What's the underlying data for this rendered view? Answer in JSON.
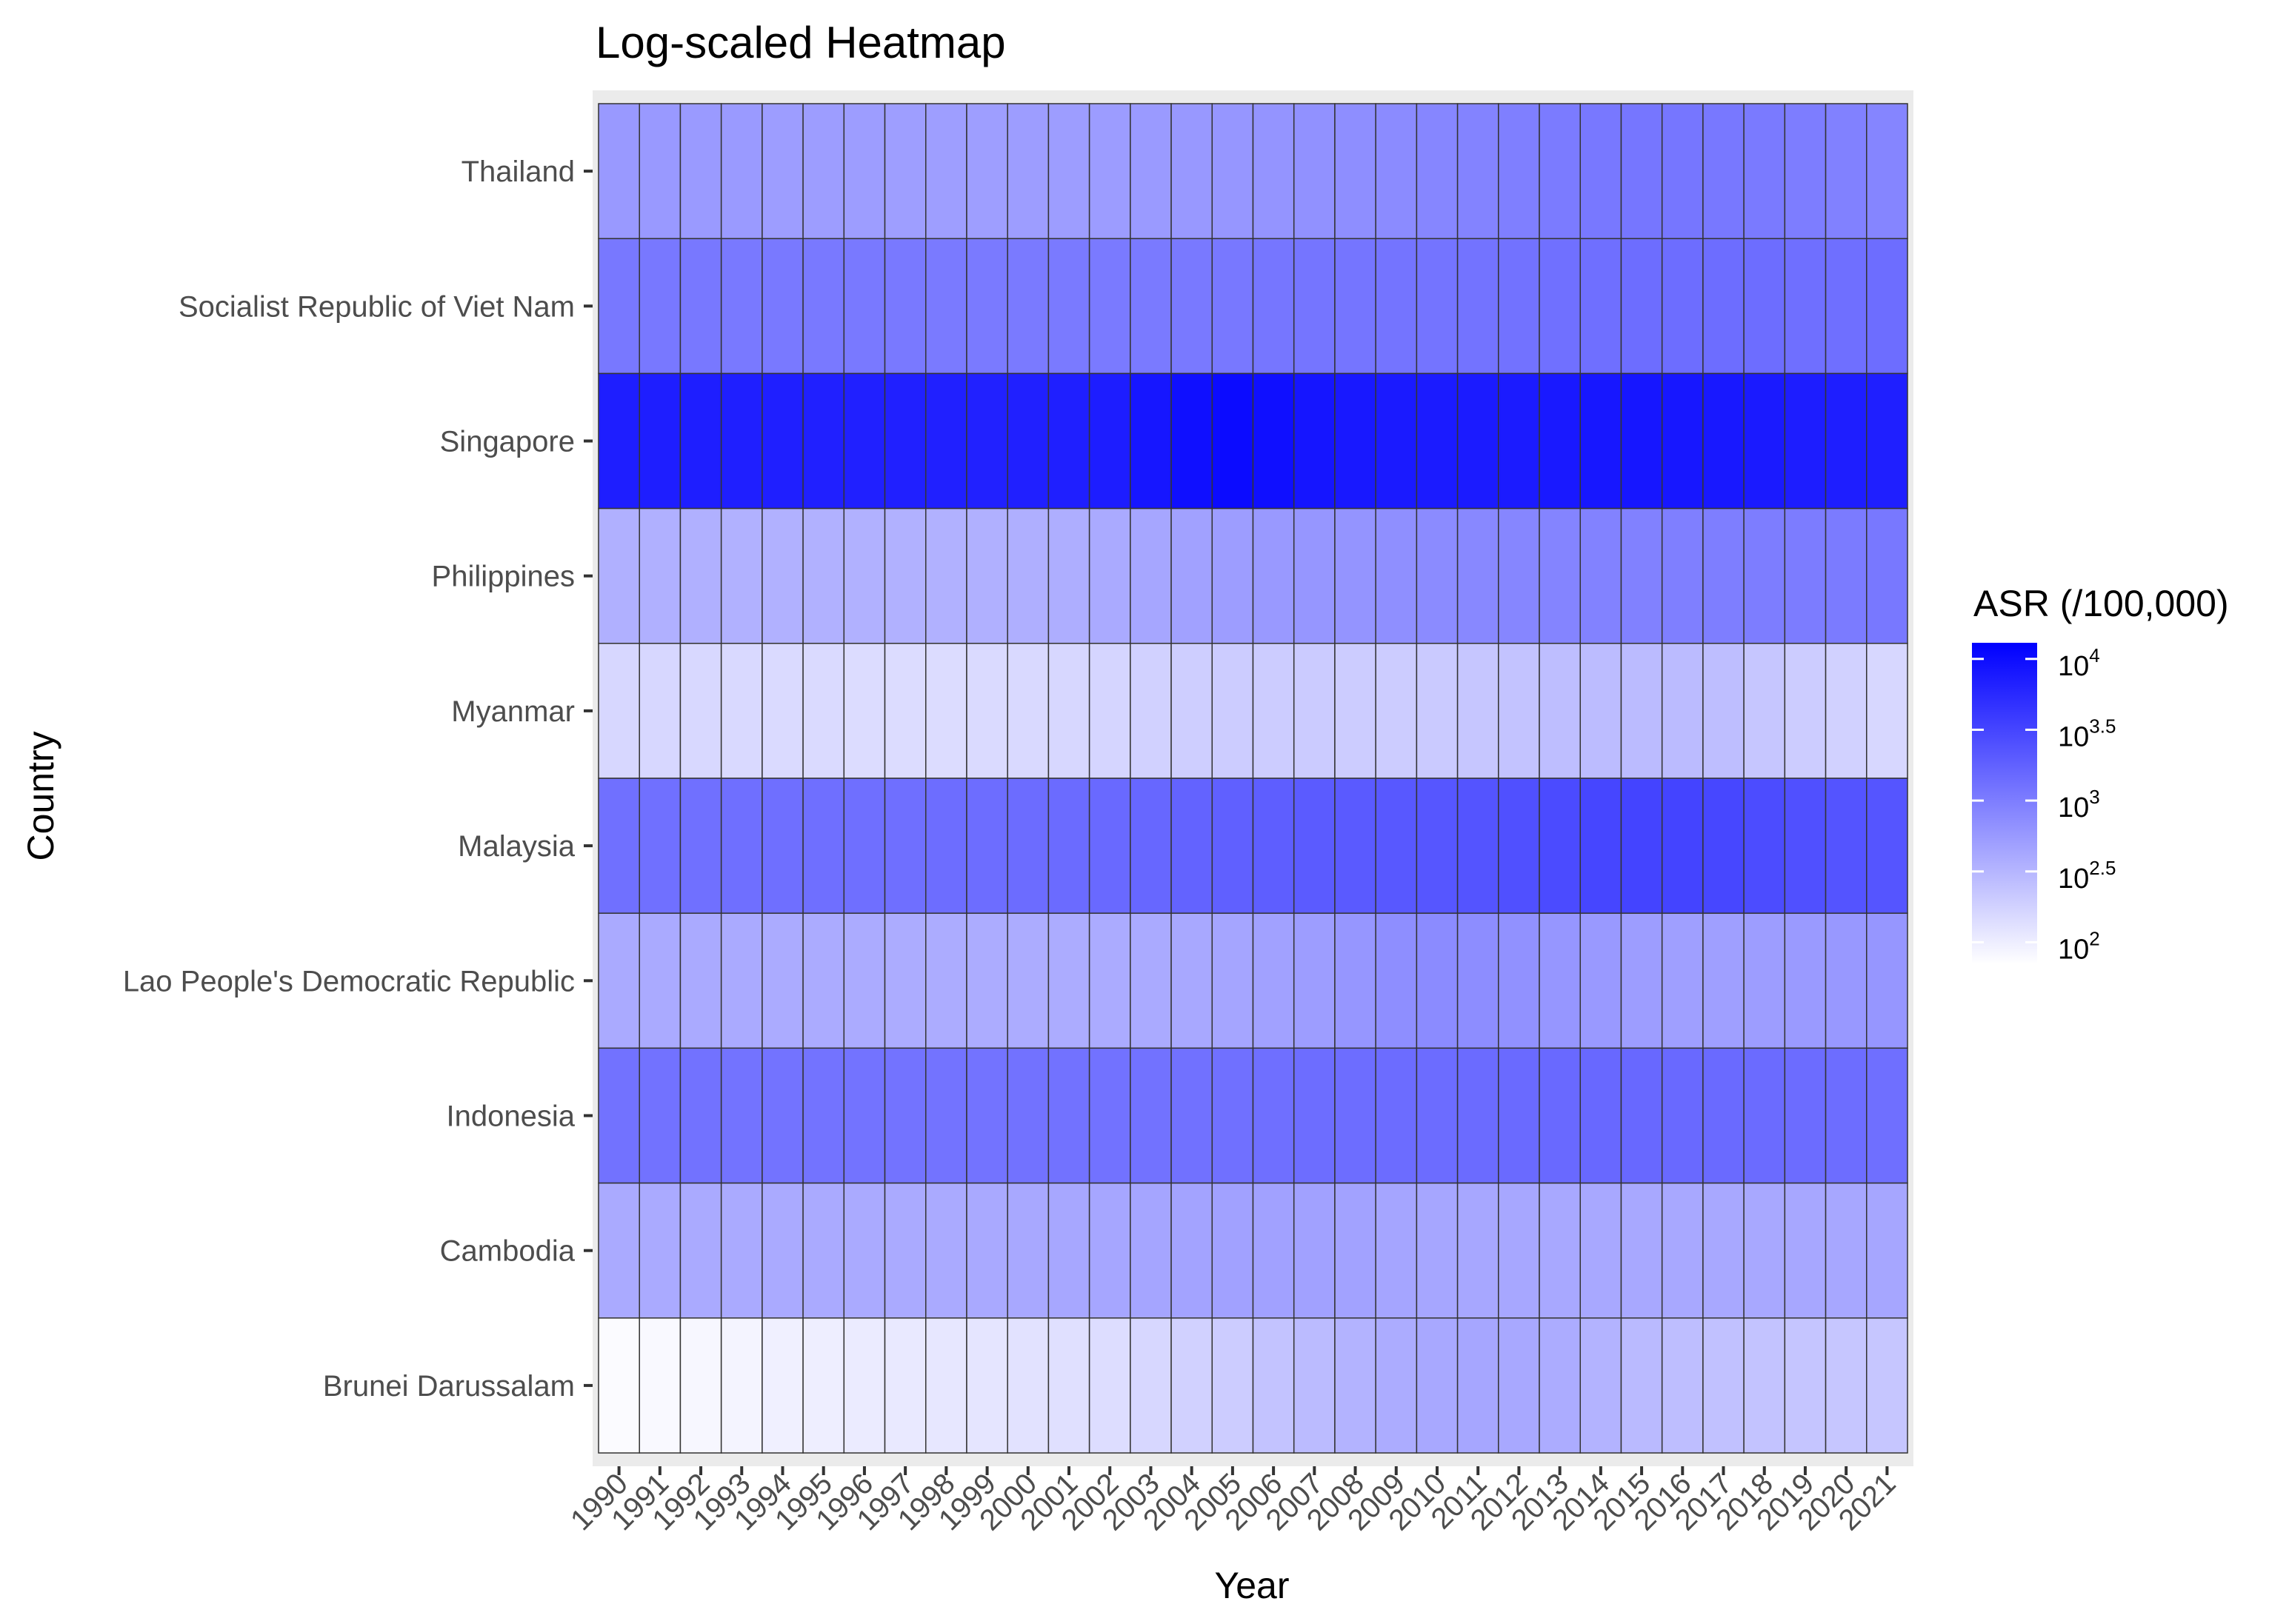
{
  "chart_data": {
    "type": "heatmap",
    "title": "Log-scaled Heatmap",
    "xlabel": "Year",
    "ylabel": "Country",
    "x": [
      "1990",
      "1991",
      "1992",
      "1993",
      "1994",
      "1995",
      "1996",
      "1997",
      "1998",
      "1999",
      "2000",
      "2001",
      "2002",
      "2003",
      "2004",
      "2005",
      "2006",
      "2007",
      "2008",
      "2009",
      "2010",
      "2011",
      "2012",
      "2013",
      "2014",
      "2015",
      "2016",
      "2017",
      "2018",
      "2019",
      "2020",
      "2021"
    ],
    "y": [
      "Thailand",
      "Socialist Republic of Viet Nam",
      "Singapore",
      "Philippines",
      "Myanmar",
      "Malaysia",
      "Lao People's Democratic Republic",
      "Indonesia",
      "Cambodia",
      "Brunei Darussalam"
    ],
    "scale": "log10",
    "color_low": "#ffffff",
    "color_high": "#0000ff",
    "legend": {
      "title": "ASR (/100,000)",
      "placement": "right",
      "ticks": [
        {
          "base": "10",
          "exp": "4",
          "value": 10000
        },
        {
          "base": "10",
          "exp": "3.5",
          "value": 3162
        },
        {
          "base": "10",
          "exp": "3",
          "value": 1000
        },
        {
          "base": "10",
          "exp": "2.5",
          "value": 316
        },
        {
          "base": "10",
          "exp": "2",
          "value": 100
        }
      ]
    },
    "legend_range": [
      70,
      13000
    ],
    "log_values": [
      [
        2.75,
        2.75,
        2.74,
        2.74,
        2.72,
        2.72,
        2.72,
        2.71,
        2.71,
        2.71,
        2.72,
        2.72,
        2.73,
        2.74,
        2.76,
        2.78,
        2.8,
        2.82,
        2.85,
        2.88,
        2.92,
        2.95,
        2.98,
        3.02,
        3.05,
        3.06,
        3.06,
        3.05,
        3.03,
        3.0,
        2.97,
        2.93
      ],
      [
        3.05,
        3.05,
        3.05,
        3.04,
        3.04,
        3.04,
        3.04,
        3.04,
        3.03,
        3.03,
        3.03,
        3.03,
        3.03,
        3.03,
        3.04,
        3.05,
        3.06,
        3.07,
        3.07,
        3.08,
        3.08,
        3.09,
        3.1,
        3.12,
        3.13,
        3.14,
        3.14,
        3.14,
        3.14,
        3.13,
        3.13,
        3.14
      ],
      [
        3.85,
        3.85,
        3.85,
        3.84,
        3.84,
        3.83,
        3.83,
        3.83,
        3.83,
        3.82,
        3.83,
        3.84,
        3.86,
        3.92,
        3.98,
        4.02,
        3.98,
        3.93,
        3.9,
        3.88,
        3.87,
        3.87,
        3.87,
        3.89,
        3.91,
        3.92,
        3.91,
        3.9,
        3.88,
        3.86,
        3.85,
        3.84
      ],
      [
        2.55,
        2.55,
        2.55,
        2.54,
        2.54,
        2.54,
        2.54,
        2.54,
        2.54,
        2.55,
        2.56,
        2.57,
        2.6,
        2.64,
        2.68,
        2.72,
        2.75,
        2.78,
        2.8,
        2.84,
        2.88,
        2.9,
        2.92,
        2.94,
        2.96,
        2.97,
        2.98,
        2.99,
        3.0,
        3.01,
        3.02,
        3.05
      ],
      [
        2.2,
        2.2,
        2.19,
        2.18,
        2.17,
        2.17,
        2.16,
        2.16,
        2.16,
        2.17,
        2.18,
        2.2,
        2.22,
        2.25,
        2.28,
        2.3,
        2.3,
        2.31,
        2.3,
        2.3,
        2.32,
        2.35,
        2.38,
        2.42,
        2.44,
        2.45,
        2.45,
        2.42,
        2.35,
        2.3,
        2.25,
        2.2
      ],
      [
        3.12,
        3.12,
        3.12,
        3.13,
        3.13,
        3.13,
        3.13,
        3.13,
        3.14,
        3.14,
        3.15,
        3.16,
        3.18,
        3.2,
        3.23,
        3.26,
        3.28,
        3.3,
        3.31,
        3.33,
        3.35,
        3.37,
        3.4,
        3.45,
        3.49,
        3.51,
        3.51,
        3.48,
        3.44,
        3.4,
        3.37,
        3.36
      ],
      [
        2.6,
        2.6,
        2.6,
        2.6,
        2.59,
        2.59,
        2.59,
        2.58,
        2.58,
        2.58,
        2.58,
        2.58,
        2.59,
        2.6,
        2.62,
        2.65,
        2.68,
        2.72,
        2.78,
        2.85,
        2.88,
        2.86,
        2.82,
        2.78,
        2.75,
        2.72,
        2.7,
        2.7,
        2.72,
        2.74,
        2.76,
        2.78
      ],
      [
        3.1,
        3.1,
        3.1,
        3.09,
        3.09,
        3.09,
        3.09,
        3.09,
        3.09,
        3.09,
        3.1,
        3.1,
        3.1,
        3.1,
        3.11,
        3.12,
        3.13,
        3.14,
        3.14,
        3.15,
        3.15,
        3.16,
        3.17,
        3.18,
        3.19,
        3.19,
        3.18,
        3.17,
        3.16,
        3.15,
        3.14,
        3.13
      ],
      [
        2.6,
        2.6,
        2.6,
        2.6,
        2.6,
        2.6,
        2.6,
        2.6,
        2.6,
        2.61,
        2.62,
        2.63,
        2.64,
        2.65,
        2.66,
        2.68,
        2.68,
        2.68,
        2.67,
        2.65,
        2.64,
        2.63,
        2.63,
        2.62,
        2.62,
        2.62,
        2.62,
        2.62,
        2.62,
        2.63,
        2.63,
        2.64
      ],
      [
        1.88,
        1.9,
        1.92,
        1.94,
        1.98,
        2.0,
        2.02,
        2.04,
        2.06,
        2.08,
        2.1,
        2.12,
        2.15,
        2.2,
        2.25,
        2.3,
        2.38,
        2.45,
        2.52,
        2.58,
        2.62,
        2.64,
        2.62,
        2.58,
        2.52,
        2.46,
        2.42,
        2.4,
        2.38,
        2.36,
        2.35,
        2.35
      ]
    ]
  }
}
